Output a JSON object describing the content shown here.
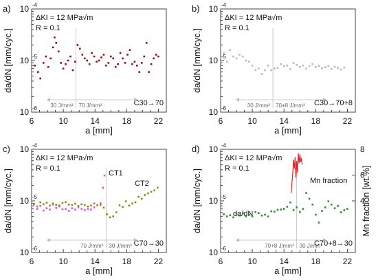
{
  "figure": {
    "background": "#ffffff"
  },
  "chart_data": [
    {
      "panel": "a)",
      "type": "scatter",
      "xlabel": "a [mm]",
      "ylabel": "da/dN [mm/cyc.]",
      "xlim": [
        6,
        23
      ],
      "ylim_log10": [
        -6,
        -4
      ],
      "x_ticks": [
        "6",
        "10",
        "14",
        "18",
        "22"
      ],
      "y_ticks": [
        "10-6",
        "10-5",
        "10-4"
      ],
      "top_left_text": [
        "ΔKI = 12 MPa√m",
        "R = 0.1"
      ],
      "bottom_right_text": "C30→70",
      "vertical_marker_x": 11.6,
      "zone_labels": [
        {
          "text": "30 J/mm³",
          "side": "left"
        },
        {
          "text": "70 J/mm³",
          "side": "right"
        }
      ],
      "series": [
        {
          "color": "#8f1010",
          "marker": "square-dot",
          "x": [
            6.4,
            6.8,
            7.1,
            7.5,
            7.8,
            8.1,
            8.4,
            8.7,
            8.9,
            9.1,
            9.4,
            9.7,
            10.0,
            10.3,
            10.6,
            10.9,
            11.2,
            11.5,
            11.8,
            12.1,
            12.4,
            12.7,
            13.0,
            13.3,
            13.6,
            13.9,
            14.2,
            14.5,
            14.8,
            15.1,
            15.4,
            15.7,
            16.0,
            16.3,
            16.6,
            16.9,
            17.2,
            17.5,
            17.8,
            18.1,
            18.4,
            18.7,
            19.0,
            19.3,
            19.6,
            19.9,
            20.2,
            20.5,
            20.8,
            21.1,
            21.4,
            21.7,
            22.0
          ],
          "y": [
            8e-06,
            6e-06,
            4.5e-06,
            9e-06,
            1.2e-05,
            7.5e-06,
            1.1e-05,
            1.8e-05,
            2.8e-05,
            2.2e-05,
            1.5e-05,
            9e-06,
            7e-06,
            8.5e-06,
            1e-05,
            1.2e-05,
            6.5e-06,
            9.5e-06,
            2e-05,
            1.7e-05,
            1.3e-05,
            1.1e-05,
            1e-05,
            8.5e-06,
            1.4e-05,
            1.2e-05,
            9.5e-06,
            1e-05,
            1.15e-05,
            1.3e-05,
            8e-06,
            9e-06,
            1.2e-05,
            1.1e-05,
            7.5e-06,
            8.5e-06,
            1.4e-05,
            1.1e-05,
            9e-06,
            1.3e-05,
            1.6e-05,
            8.5e-06,
            9.5e-06,
            8e-06,
            6e-06,
            9e-06,
            1.2e-05,
            2.2e-05,
            6e-06,
            8.5e-06,
            1.1e-05,
            1.3e-05,
            1.2e-05
          ]
        }
      ]
    },
    {
      "panel": "b)",
      "type": "scatter",
      "xlabel": "a [mm]",
      "ylabel": "da/dN [mm/cyc.]",
      "xlim": [
        6,
        23
      ],
      "ylim_log10": [
        -6,
        -4
      ],
      "x_ticks": [
        "6",
        "10",
        "14",
        "18",
        "22"
      ],
      "y_ticks": [
        "10-6",
        "10-5",
        "10-4"
      ],
      "top_left_text": [
        "ΔKI = 12 MPa√m",
        "R = 0.1"
      ],
      "bottom_right_text": "C30→70+8",
      "vertical_marker_x": 12.6,
      "zone_labels": [
        {
          "text": "30 J/mm³",
          "side": "left"
        },
        {
          "text": "70+8 J/mm³",
          "side": "right"
        }
      ],
      "series": [
        {
          "color": "#b9b9b9",
          "marker": "square-dot",
          "x": [
            6.4,
            6.8,
            7.2,
            7.6,
            8.0,
            8.4,
            8.8,
            9.2,
            9.6,
            10.0,
            10.4,
            10.8,
            11.2,
            11.6,
            12.0,
            12.4,
            12.8,
            13.2,
            13.6,
            14.0,
            14.4,
            14.8,
            15.2,
            15.6,
            16.0,
            16.4,
            16.8,
            17.2,
            17.6,
            18.0,
            18.4,
            18.8,
            19.2,
            19.6,
            20.0,
            20.4,
            20.8,
            21.2,
            21.6
          ],
          "y": [
            1.4e-05,
            9.5e-06,
            1.6e-05,
            1.2e-05,
            1.1e-05,
            1.3e-05,
            1.2e-05,
            1e-05,
            9.5e-06,
            8e-06,
            6.5e-06,
            7e-06,
            5.5e-06,
            6.5e-06,
            8e-06,
            6.5e-06,
            7e-06,
            7.2e-06,
            8.5e-06,
            7.8e-06,
            8e-06,
            6.8e-06,
            9e-06,
            8.2e-06,
            7.5e-06,
            8e-06,
            7e-06,
            7.8e-06,
            8.5e-06,
            7.5e-06,
            7.9e-06,
            7.1e-06,
            7.4e-06,
            7.9e-06,
            6.9e-06,
            7.6e-06,
            7.2e-06,
            6.7e-06,
            7.3e-06
          ]
        }
      ]
    },
    {
      "panel": "c)",
      "type": "scatter",
      "xlabel": "a [mm]",
      "ylabel": "da/dN [mm/cyc.]",
      "xlim": [
        6,
        23
      ],
      "ylim_log10": [
        -6,
        -4
      ],
      "x_ticks": [
        "6",
        "10",
        "14",
        "18",
        "22"
      ],
      "y_ticks": [
        "10-6",
        "10-5",
        "10-4"
      ],
      "top_left_text": [
        "ΔKI = 12 MPa√m",
        "R = 0.1"
      ],
      "bottom_right_text": "C70→30",
      "vertical_marker_x": 15.4,
      "zone_labels": [
        {
          "text": "70 J/mm³",
          "side": "left"
        },
        {
          "text": "30 J/mm³",
          "side": "right"
        }
      ],
      "series_labels": [
        {
          "text": "CT1",
          "color": "#e64ce6"
        },
        {
          "text": "CT2",
          "color": "#8a8a13"
        }
      ],
      "series": [
        {
          "name": "CT1",
          "color": "#e64ce6",
          "marker": "square-dot",
          "x": [
            6.3,
            6.7,
            7.1,
            7.5,
            7.9,
            8.3,
            8.7,
            9.1,
            9.5,
            9.9,
            10.3,
            10.7,
            11.1,
            11.5,
            11.9,
            12.3,
            12.7,
            13.1,
            13.5,
            13.9,
            14.3,
            14.7,
            15.0,
            15.2
          ],
          "y": [
            8.5e-06,
            7e-06,
            8e-06,
            6.5e-06,
            7.2e-06,
            6.8e-06,
            8.5e-06,
            7.3e-06,
            7.8e-06,
            6.9e-06,
            7e-06,
            6.4e-06,
            7.2e-06,
            6.8e-06,
            7.5e-06,
            7e-06,
            6.6e-06,
            7e-06,
            6.8e-06,
            7.5e-06,
            8.2e-06,
            9e-06,
            1.8e-05,
            3.1e-05
          ]
        },
        {
          "name": "CT2",
          "color": "#8a8a13",
          "marker": "square-dot",
          "x": [
            6.3,
            6.7,
            7.1,
            7.5,
            7.9,
            8.3,
            8.7,
            9.1,
            9.5,
            9.9,
            10.3,
            10.7,
            11.1,
            11.5,
            11.9,
            12.3,
            12.7,
            13.1,
            13.5,
            13.9,
            14.3,
            14.7,
            15.1,
            15.5,
            15.9,
            16.3,
            16.7,
            17.1,
            17.5,
            17.9,
            18.3,
            18.7,
            19.1,
            19.5,
            19.9,
            20.3,
            20.7,
            21.1,
            21.5,
            21.9
          ],
          "y": [
            8.8e-06,
            7.8e-06,
            9.4e-06,
            8.6e-06,
            9.2e-06,
            8.1e-06,
            8.9e-06,
            8.4e-06,
            8.2e-06,
            9.1e-06,
            9.5e-06,
            8.5e-06,
            8.3e-06,
            8.8e-06,
            8e-06,
            8.6e-06,
            8.3e-06,
            7.8e-06,
            8.1e-06,
            8.9e-06,
            8.2e-06,
            8.4e-06,
            7.4e-06,
            5.5e-06,
            4.8e-06,
            5e-06,
            6e-06,
            8.2e-06,
            7.6e-06,
            9.8e-06,
            8.1e-06,
            8.9e-06,
            9.4e-06,
            1.2e-05,
            1.1e-05,
            1.3e-05,
            1.4e-05,
            1.5e-05,
            1.6e-05,
            1.8e-05
          ]
        }
      ]
    },
    {
      "panel": "d)",
      "type": "scatter",
      "xlabel": "a [mm]",
      "ylabel": "da/dN [mm/cyc.]",
      "right_ylabel": "Mn fraction [wt.%]",
      "xlim": [
        6,
        23
      ],
      "ylim_log10": [
        -6,
        -4
      ],
      "right_ylim": [
        0,
        8
      ],
      "x_ticks": [
        "6",
        "10",
        "14",
        "18",
        "22"
      ],
      "y_ticks": [
        "10-6",
        "10-5",
        "10-4"
      ],
      "right_ticks": [
        "4",
        "6",
        "8"
      ],
      "top_left_text": [
        "ΔKI = 12 MPa√m",
        "R = 0.1"
      ],
      "bottom_right_text": "C70+8→30",
      "vertical_marker_x": 15.6,
      "zone_labels": [
        {
          "text": "70+8 J/mm³",
          "side": "left"
        },
        {
          "text": "30 J/mm³",
          "side": "right"
        }
      ],
      "series_labels": [
        {
          "text": "Mn fraction",
          "color": "#e12424"
        },
        {
          "text": "da/dN",
          "color": "#2d8f2d"
        }
      ],
      "series": [
        {
          "name": "da/dN",
          "color": "#2d8f2d",
          "marker": "square-dot",
          "x": [
            6.4,
            6.8,
            7.2,
            7.6,
            8.0,
            8.4,
            8.8,
            9.2,
            9.6,
            10.0,
            10.4,
            10.8,
            11.2,
            11.6,
            12.0,
            12.4,
            12.8,
            13.2,
            13.6,
            14.0,
            14.4,
            14.8,
            15.2,
            15.6,
            16.0,
            16.4,
            16.8,
            17.2,
            17.6,
            18.0,
            18.4,
            18.8,
            19.2,
            19.6,
            20.0,
            20.4,
            20.8,
            21.2,
            21.6,
            22.0
          ],
          "y": [
            5.5e-06,
            5e-06,
            5.3e-06,
            4.8e-06,
            5.7e-06,
            5.2e-06,
            5.8e-06,
            5e-06,
            5.4e-06,
            5e-06,
            6.1e-06,
            5.8e-06,
            5.2e-06,
            5.4e-06,
            5e-06,
            6.3e-06,
            6.2e-06,
            6.7e-06,
            6.8e-06,
            7e-06,
            7.7e-06,
            9.3e-06,
            6.6e-06,
            7.5e-06,
            6.1e-06,
            7e-06,
            1.42e-05,
            1.1e-05,
            8.5e-06,
            5.4e-06,
            3.8e-06,
            6.4e-06,
            7.5e-06,
            9.8e-06,
            8.5e-06,
            7.2e-06,
            8e-06,
            6e-06,
            6.6e-06,
            7e-06
          ]
        },
        {
          "name": "Mn fraction",
          "color": "#e12424",
          "kind": "line",
          "x": [
            14.9,
            15.0,
            15.1,
            15.2,
            15.3,
            15.4,
            15.5,
            15.6,
            15.7,
            15.8,
            15.9,
            16.0,
            16.1,
            16.2,
            16.3
          ],
          "y": [
            4.6,
            5.4,
            6.1,
            7.2,
            6.5,
            7.4,
            5.8,
            7.1,
            6.2,
            7.7,
            6.9,
            7.6,
            7.0,
            7.3,
            6.8
          ]
        }
      ]
    }
  ]
}
